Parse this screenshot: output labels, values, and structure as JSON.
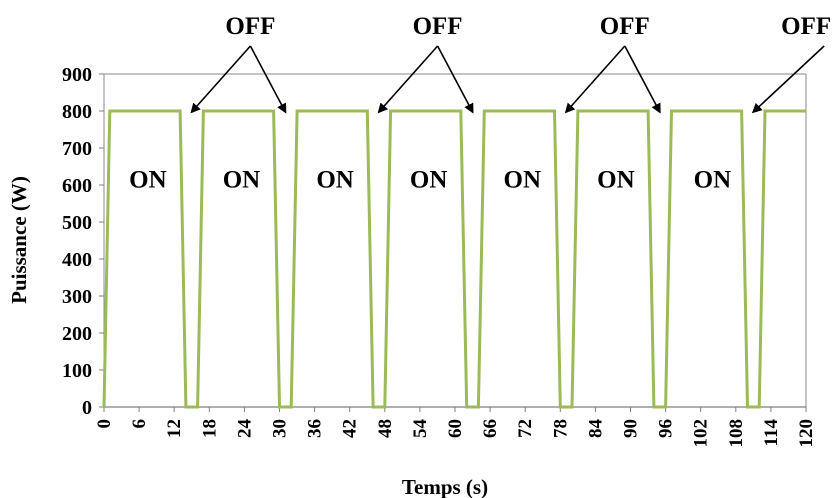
{
  "chart_data": {
    "type": "line",
    "xlabel": "Temps (s)",
    "ylabel": "Puissance (W)",
    "xlim": [
      0,
      120
    ],
    "ylim": [
      0,
      900
    ],
    "x_ticks": [
      "0",
      "6",
      "12",
      "18",
      "24",
      "30",
      "36",
      "42",
      "48",
      "54",
      "60",
      "66",
      "72",
      "78",
      "84",
      "90",
      "96",
      "102",
      "108",
      "114",
      "120"
    ],
    "y_ticks": [
      "0",
      "100",
      "200",
      "300",
      "400",
      "500",
      "600",
      "700",
      "800",
      "900"
    ],
    "grid": false,
    "series": [
      {
        "color": "#9bbb59",
        "x": [
          0,
          1,
          13,
          14,
          16,
          17,
          29,
          30,
          32,
          33,
          45,
          46,
          48,
          49,
          61,
          62,
          64,
          65,
          77,
          78,
          80,
          81,
          93,
          94,
          96,
          97,
          109,
          110,
          112,
          113,
          120
        ],
        "y": [
          0,
          800,
          800,
          0,
          0,
          800,
          800,
          0,
          0,
          800,
          800,
          0,
          0,
          800,
          800,
          0,
          0,
          800,
          800,
          0,
          0,
          800,
          800,
          0,
          0,
          800,
          800,
          0,
          0,
          800,
          800
        ]
      }
    ],
    "annotations": {
      "on_label": "ON",
      "on_at_x": [
        7.5,
        23.5,
        39.5,
        55.5,
        71.5,
        87.5,
        104
      ],
      "on_at_y": 620,
      "off_label": "OFF",
      "off_at_x": [
        24,
        56,
        88,
        119
      ],
      "off_at_y": 1000,
      "off_arrows": [
        {
          "from_x": 24,
          "to_x": 15,
          "to_y": 830
        },
        {
          "from_x": 24,
          "to_x": 31,
          "to_y": 830
        },
        {
          "from_x": 56,
          "to_x": 47,
          "to_y": 830
        },
        {
          "from_x": 56,
          "to_x": 63,
          "to_y": 830
        },
        {
          "from_x": 88,
          "to_x": 79,
          "to_y": 830
        },
        {
          "from_x": 88,
          "to_x": 95,
          "to_y": 830
        },
        {
          "from_x": 119,
          "to_x": 111,
          "to_y": 830
        }
      ]
    }
  }
}
